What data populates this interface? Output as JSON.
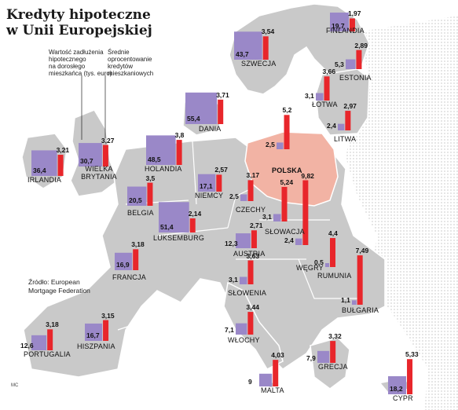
{
  "title_line1": "Kredyty hipoteczne",
  "title_line2": "w Unii Europejskiej",
  "legend": {
    "square_label": [
      "Wartość zadłużenia",
      "hipotecznego",
      "na dorosłego",
      "mieszkańca (tys. euro)"
    ],
    "bar_label": [
      "Średnie",
      "oprocentowanie",
      "kredytów",
      "mieszkaniowych"
    ]
  },
  "source": [
    "Źródło: European",
    "Mortgage Federation"
  ],
  "credit": "MC",
  "colors": {
    "square": "#9a88c8",
    "bar": "#e8262b",
    "poland": "#f2b3a4",
    "land": "#c9c9c9",
    "border": "#ffffff"
  },
  "chart_data": {
    "type": "table",
    "columns": [
      "country",
      "debt_per_adult_thousand_eur",
      "avg_interest_rate_percent"
    ],
    "rows": [
      {
        "country": "FINLANDIA",
        "debt": 19.7,
        "debt_label": "19,7",
        "rate": 1.97,
        "rate_label": "1,97"
      },
      {
        "country": "SZWECJA",
        "debt": 43.7,
        "debt_label": "43,7",
        "rate": 3.54,
        "rate_label": "3,54"
      },
      {
        "country": "ESTONIA",
        "debt": 5.3,
        "debt_label": "5,3",
        "rate": 2.89,
        "rate_label": "2,89"
      },
      {
        "country": "ŁOTWA",
        "debt": 3.1,
        "debt_label": "3,1",
        "rate": 3.66,
        "rate_label": "3,66"
      },
      {
        "country": "LITWA",
        "debt": 2.4,
        "debt_label": "2,4",
        "rate": 2.97,
        "rate_label": "2,97"
      },
      {
        "country": "DANIA",
        "debt": 55.4,
        "debt_label": "55,4",
        "rate": 3.71,
        "rate_label": "3,71"
      },
      {
        "country": "IRLANDIA",
        "debt": 36.4,
        "debt_label": "36,4",
        "rate": 3.21,
        "rate_label": "3,21"
      },
      {
        "country": "WIELKA BRYTANIA",
        "debt": 30.7,
        "debt_label": "30,7",
        "rate": 3.27,
        "rate_label": "3,27"
      },
      {
        "country": "HOLANDIA",
        "debt": 48.5,
        "debt_label": "48,5",
        "rate": 3.8,
        "rate_label": "3,8"
      },
      {
        "country": "POLSKA",
        "debt": 2.5,
        "debt_label": "2,5",
        "rate": 5.2,
        "rate_label": "5,2"
      },
      {
        "country": "NIEMCY",
        "debt": 17.1,
        "debt_label": "17,1",
        "rate": 2.57,
        "rate_label": "2,57"
      },
      {
        "country": "BELGIA",
        "debt": 20.5,
        "debt_label": "20,5",
        "rate": 3.5,
        "rate_label": "3,5"
      },
      {
        "country": "LUKSEMBURG",
        "debt": 51.4,
        "debt_label": "51,4",
        "rate": 2.14,
        "rate_label": "2,14"
      },
      {
        "country": "CZECHY",
        "debt": 2.5,
        "debt_label": "2,5",
        "rate": 3.17,
        "rate_label": "3,17"
      },
      {
        "country": "SŁOWACJA",
        "debt": 3.1,
        "debt_label": "3,1",
        "rate": 5.24,
        "rate_label": "5,24"
      },
      {
        "country": "WĘGRY",
        "debt": 2.4,
        "debt_label": "2,4",
        "rate": 9.82,
        "rate_label": "9,82"
      },
      {
        "country": "AUSTRIA",
        "debt": 12.3,
        "debt_label": "12,3",
        "rate": 2.71,
        "rate_label": "2,71"
      },
      {
        "country": "FRANCJA",
        "debt": 16.9,
        "debt_label": "16,9",
        "rate": 3.18,
        "rate_label": "3,18"
      },
      {
        "country": "SŁOWENIA",
        "debt": 3.1,
        "debt_label": "3,1",
        "rate": 3.63,
        "rate_label": "3,63"
      },
      {
        "country": "RUMUNIA",
        "debt": 0.5,
        "debt_label": "0,5",
        "rate": 4.4,
        "rate_label": "4,4"
      },
      {
        "country": "BUŁGARIA",
        "debt": 1.1,
        "debt_label": "1,1",
        "rate": 7.49,
        "rate_label": "7,49"
      },
      {
        "country": "PORTUGALIA",
        "debt": 12.6,
        "debt_label": "12,6",
        "rate": 3.18,
        "rate_label": "3,18"
      },
      {
        "country": "HISZPANIA",
        "debt": 16.7,
        "debt_label": "16,7",
        "rate": 3.15,
        "rate_label": "3,15"
      },
      {
        "country": "WŁOCHY",
        "debt": 7.1,
        "debt_label": "7,1",
        "rate": 3.44,
        "rate_label": "3,44"
      },
      {
        "country": "GRECJA",
        "debt": 7.9,
        "debt_label": "7,9",
        "rate": 3.32,
        "rate_label": "3,32"
      },
      {
        "country": "MALTA",
        "debt": 9,
        "debt_label": "9",
        "rate": 4.03,
        "rate_label": "4,03"
      },
      {
        "country": "CYPR",
        "debt": 18.2,
        "debt_label": "18,2",
        "rate": 5.33,
        "rate_label": "5,33"
      }
    ]
  }
}
